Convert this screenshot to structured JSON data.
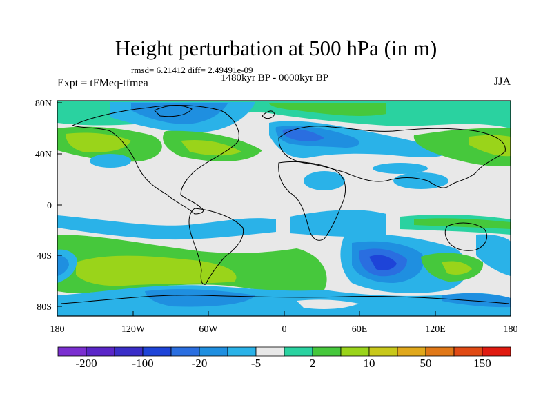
{
  "title": "Height perturbation at 500 hPa (in m)",
  "stats": "rmsd= 6.21412 diff= 2.49491e-09",
  "period": "1480kyr BP - 0000kyr BP",
  "experiment": "Expt = tFMeq-tfmea",
  "season": "JJA",
  "lat_ticks": [
    "80N",
    "40N",
    "0",
    "40S",
    "80S"
  ],
  "lon_ticks": [
    "180",
    "120W",
    "60W",
    "0",
    "60E",
    "120E",
    "180"
  ],
  "colorbar": {
    "colors": [
      "#7b2fd0",
      "#5a26c8",
      "#3a2ec8",
      "#1e44d8",
      "#2a6ee0",
      "#1f8fe0",
      "#2ab2e8",
      "#e8e8e8",
      "#2ad2a0",
      "#46c83c",
      "#9ad41a",
      "#c8c81a",
      "#e0a81c",
      "#e07818",
      "#e04a14",
      "#e01a10"
    ],
    "labels": [
      "-200",
      "-100",
      "-20",
      "-5",
      "2",
      "10",
      "50",
      "150"
    ]
  }
}
